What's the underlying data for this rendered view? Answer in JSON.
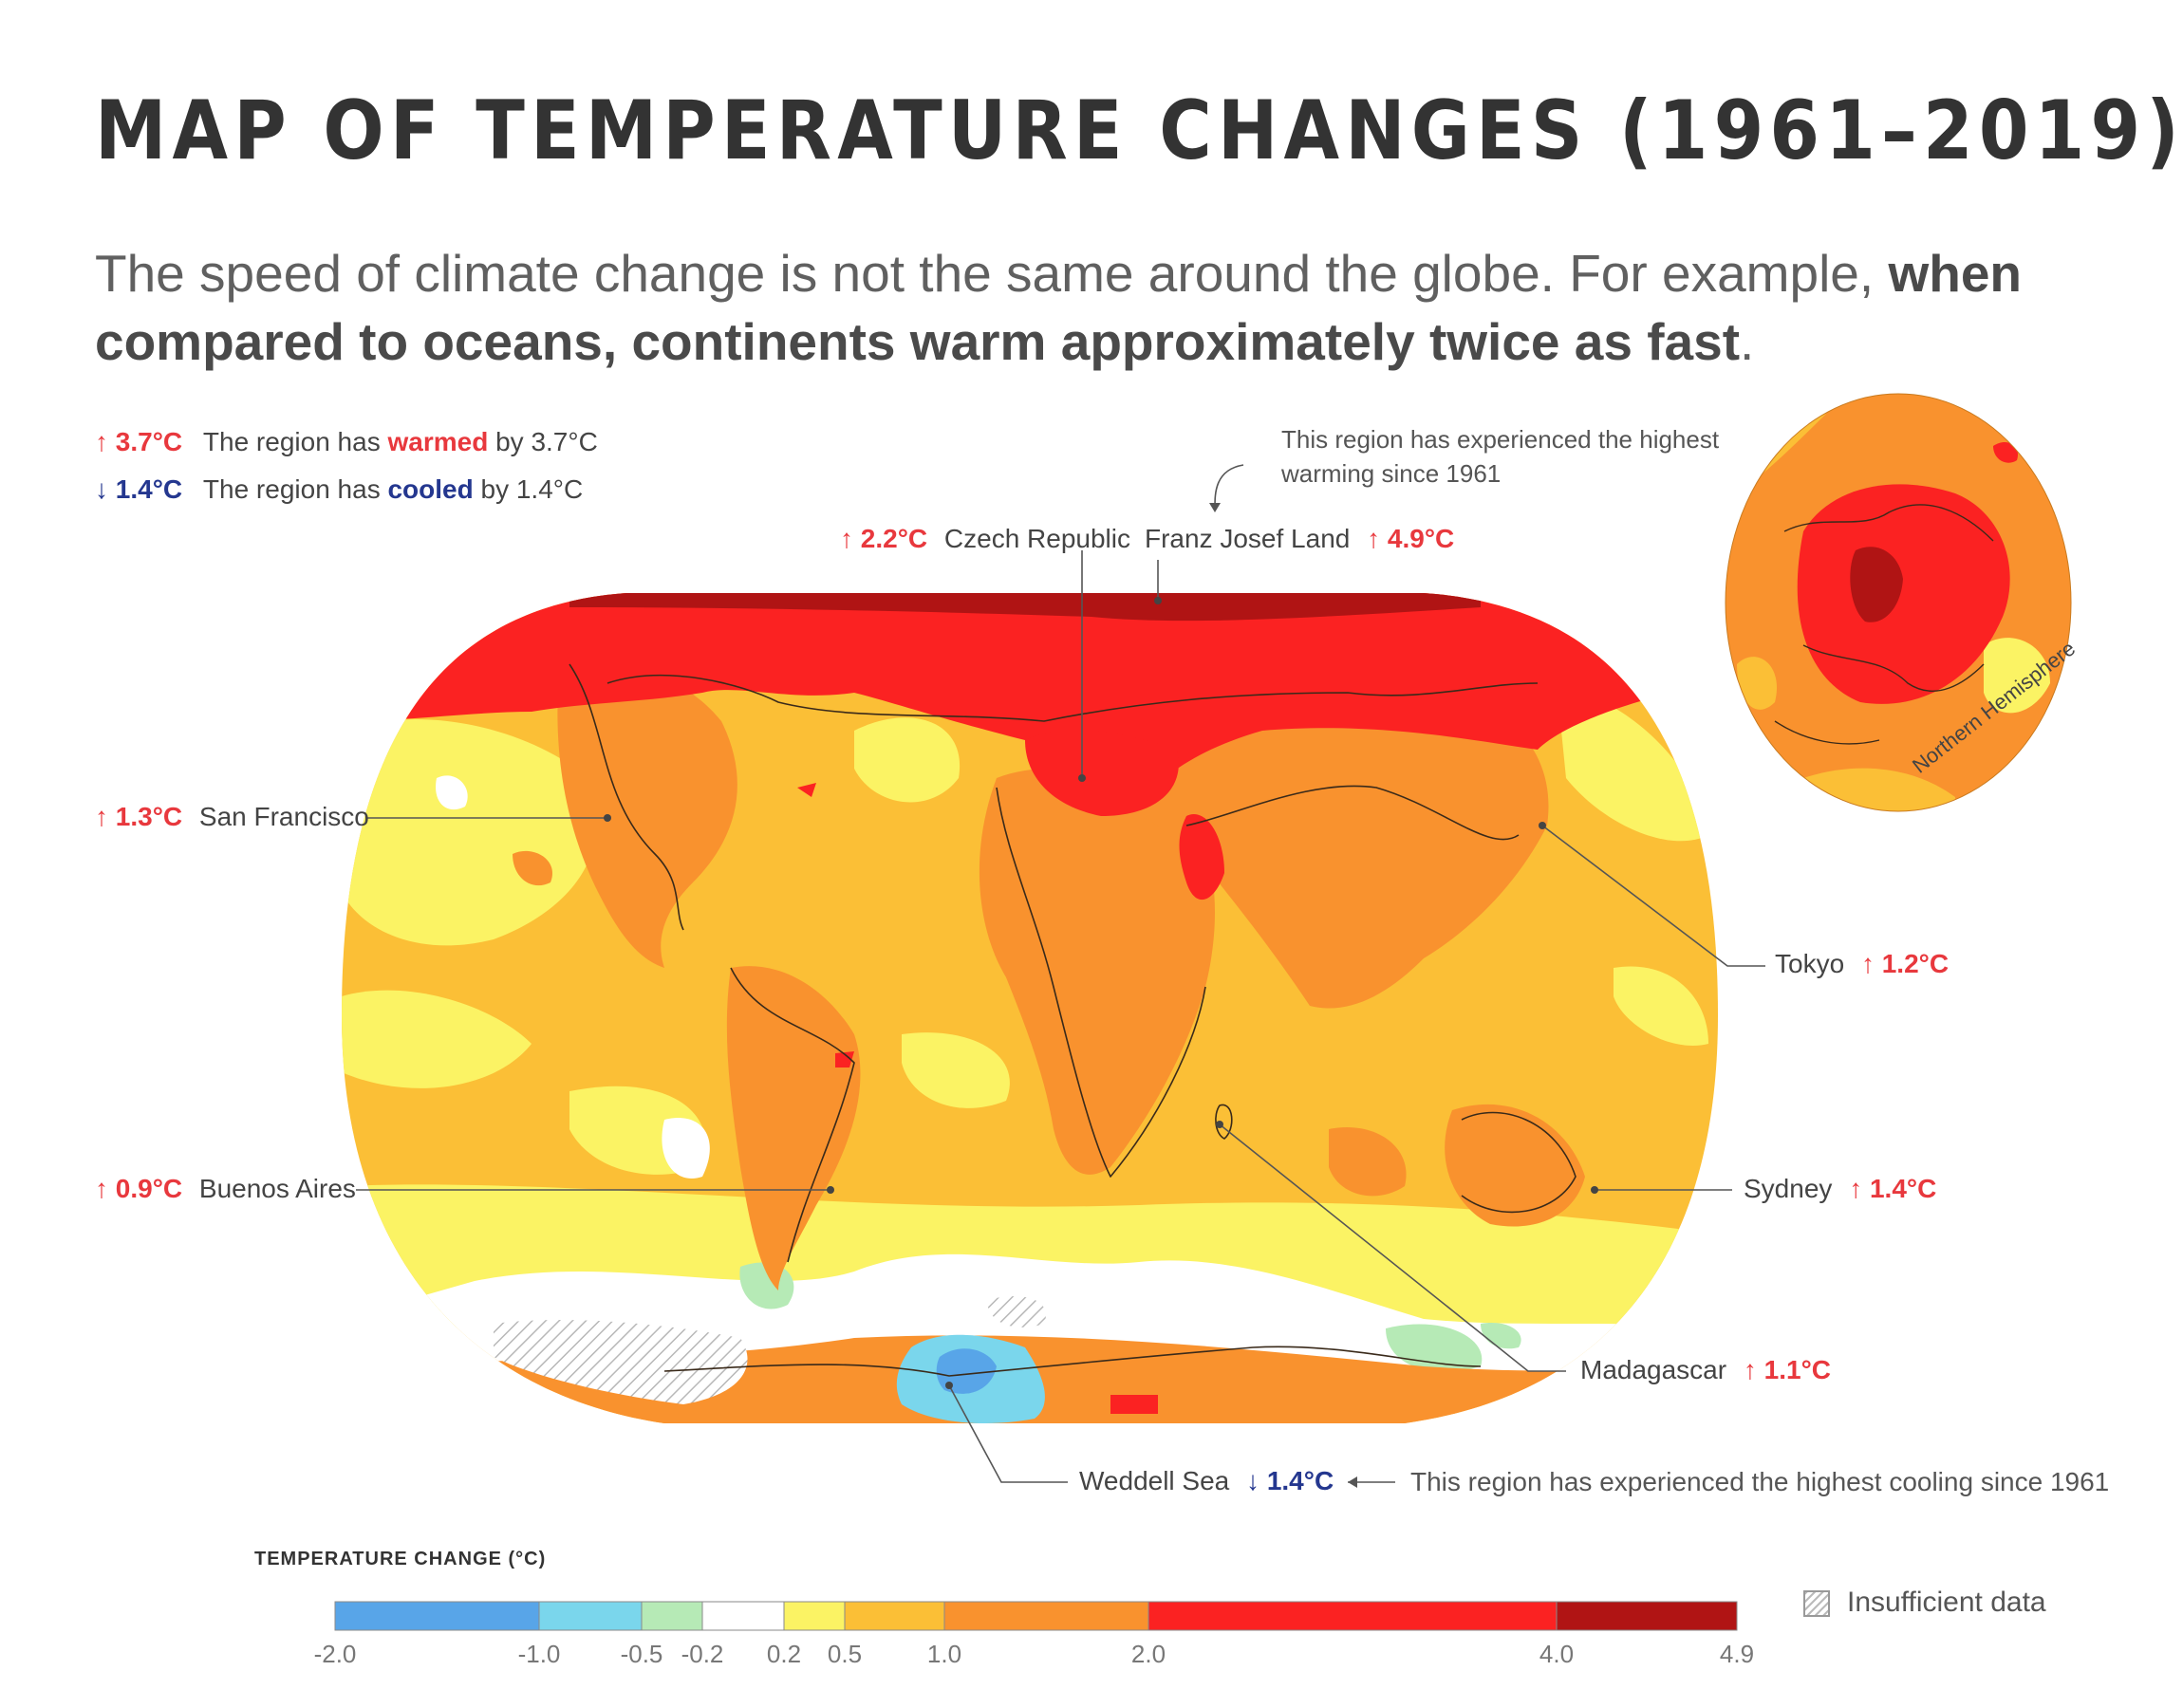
{
  "title": "MAP OF TEMPERATURE CHANGES (1961–2019)",
  "subtitle": {
    "intro": "The speed of climate change is not the same around the globe. For example, ",
    "bold": "when compared to oceans, continents warm approximately twice as fast",
    "end": "."
  },
  "legend": {
    "warm_value": "↑ 3.7°C",
    "warm_text_before": "The region has ",
    "warm_word": "warmed",
    "warm_text_after": " by 3.7°C",
    "cool_value": "↓ 1.4°C",
    "cool_text_before": "The region has ",
    "cool_word": "cooled",
    "cool_text_after": " by 1.4°C"
  },
  "notes": {
    "highest_warming": "This region has experienced the highest warming since 1961",
    "highest_cooling": "This region has experienced the highest cooling since 1961"
  },
  "places": [
    {
      "name": "Czech Republic",
      "value": "↑ 2.2°C",
      "dir": "warm"
    },
    {
      "name": "Franz Josef Land",
      "value": "↑ 4.9°C",
      "dir": "warm"
    },
    {
      "name": "San Francisco",
      "value": "↑ 1.3°C",
      "dir": "warm"
    },
    {
      "name": "Tokyo",
      "value": "↑ 1.2°C",
      "dir": "warm"
    },
    {
      "name": "Buenos Aires",
      "value": "↑ 0.9°C",
      "dir": "warm"
    },
    {
      "name": "Sydney",
      "value": "↑ 1.4°C",
      "dir": "warm"
    },
    {
      "name": "Madagascar",
      "value": "↑ 1.1°C",
      "dir": "warm"
    },
    {
      "name": "Weddell Sea",
      "value": "↓ 1.4°C",
      "dir": "cool"
    }
  ],
  "inset_label": "Northern Hemisphere",
  "color_scale": {
    "title": "TEMPERATURE CHANGE (°C)",
    "bins": [
      {
        "from": -2.0,
        "to": -1.0,
        "color": "#58a5e8"
      },
      {
        "from": -1.0,
        "to": -0.5,
        "color": "#7ad6ec"
      },
      {
        "from": -0.5,
        "to": -0.2,
        "color": "#b6eab6"
      },
      {
        "from": -0.2,
        "to": 0.2,
        "color": "#ffffff"
      },
      {
        "from": 0.2,
        "to": 0.5,
        "color": "#fbf364"
      },
      {
        "from": 0.5,
        "to": 1.0,
        "color": "#fbbf36"
      },
      {
        "from": 1.0,
        "to": 2.0,
        "color": "#f9922e"
      },
      {
        "from": 2.0,
        "to": 4.0,
        "color": "#fb2222"
      },
      {
        "from": 4.0,
        "to": 4.9,
        "color": "#b01414"
      }
    ],
    "tick_labels": [
      "-2.0",
      "-1.0",
      "-0.5",
      "-0.2",
      "0.2",
      "0.5",
      "1.0",
      "2.0",
      "4.0",
      "4.9"
    ],
    "insufficient_label": "Insufficient data"
  },
  "colors": {
    "warm": "#e8383d",
    "cool": "#24378f"
  }
}
